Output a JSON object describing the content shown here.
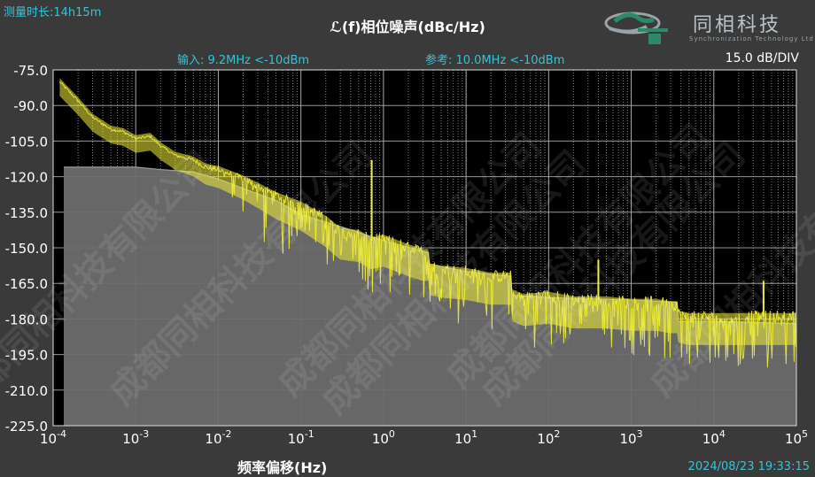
{
  "header": {
    "measure_time": "测量时长:14h15m",
    "title": "ℒ(f)相位噪声(dBc/Hz)",
    "input_info": "输入: 9.2MHz <-10dBm",
    "ref_info": "参考: 10.0MHz <-10dBm",
    "scale": "15.0 dB/DIV"
  },
  "logo": {
    "text": "同相科技",
    "subtitle": "Synchronization Technology Ltd",
    "icon": "st-logo-icon"
  },
  "footer": {
    "xlabel": "频率偏移(Hz)",
    "timestamp": "2024/08/23 19:33:15"
  },
  "watermark": {
    "text": "成都同相科技有限公司"
  },
  "colors": {
    "background": "#3a3a3a",
    "plot_background": "#000000",
    "trace": "#f0ee3a",
    "floor": "#6d6d6d",
    "accent_text": "#35c3d8"
  },
  "chart_data": {
    "type": "line",
    "title": "ℒ(f)相位噪声(dBc/Hz)",
    "xlabel": "频率偏移(Hz)",
    "ylabel": "",
    "x_scale": "log",
    "xlim": [
      0.0001,
      100000
    ],
    "ylim": [
      -225,
      -75
    ],
    "yticks": [
      -75,
      -90,
      -105,
      -120,
      -135,
      -150,
      -165,
      -180,
      -195,
      -210,
      -225
    ],
    "ytick_labels": [
      "-75.0",
      "-90.0",
      "-105.0",
      "-120.0",
      "-135.0",
      "-150.0",
      "-165.0",
      "-180.0",
      "-195.0",
      "-210.0",
      "-225.0"
    ],
    "xtick_exponents": [
      "-4",
      "-3",
      "-2",
      "-1",
      "0",
      "1",
      "2",
      "3",
      "4",
      "5"
    ],
    "grid": true,
    "series": [
      {
        "role": "trace",
        "color": "#f0ee3a",
        "x": [
          0.00012,
          0.0002,
          0.0003,
          0.0005,
          0.0007,
          0.001,
          0.0015,
          0.002,
          0.003,
          0.005,
          0.007,
          0.01,
          0.02,
          0.03,
          0.05,
          0.1,
          0.2,
          0.3,
          0.5,
          0.7,
          1,
          2,
          3,
          3.5,
          3.6,
          5,
          10,
          20,
          30,
          35,
          36,
          50,
          100,
          200,
          300,
          400,
          500,
          1000,
          2000,
          3000,
          3600,
          3700,
          5000,
          10000,
          30000,
          100000
        ],
        "values": [
          -80,
          -88,
          -95,
          -100,
          -101,
          -104,
          -103,
          -107,
          -111,
          -113,
          -116,
          -117,
          -121,
          -124,
          -128,
          -132,
          -138,
          -143,
          -144,
          -147,
          -146,
          -150,
          -152,
          -152,
          -158,
          -159,
          -160,
          -162,
          -162,
          -162,
          -169,
          -171,
          -170,
          -172,
          -172,
          -172,
          -172,
          -173,
          -173,
          -174,
          -174,
          -178,
          -179,
          -179,
          -179,
          -179
        ]
      },
      {
        "role": "noise-floor",
        "color": "#6d6d6d",
        "x": [
          0.0001,
          0.001,
          0.002,
          0.005,
          0.01,
          0.02,
          0.05,
          0.1,
          0.3,
          1,
          3.5,
          3.6,
          10,
          35,
          36,
          100,
          1000,
          3600,
          3700,
          10000,
          100000
        ],
        "values": [
          -116,
          -116,
          -117,
          -118,
          -121,
          -125,
          -130,
          -136,
          -141,
          -147,
          -152,
          -157,
          -160,
          -162,
          -170,
          -171,
          -172,
          -173,
          -181,
          -181,
          -182
        ]
      }
    ],
    "spurs": [
      {
        "x": 0.72,
        "value": -113
      },
      {
        "x": 0.7,
        "value": -147
      },
      {
        "x": 400,
        "value": -155
      },
      {
        "x": 40000,
        "value": -164
      }
    ]
  }
}
